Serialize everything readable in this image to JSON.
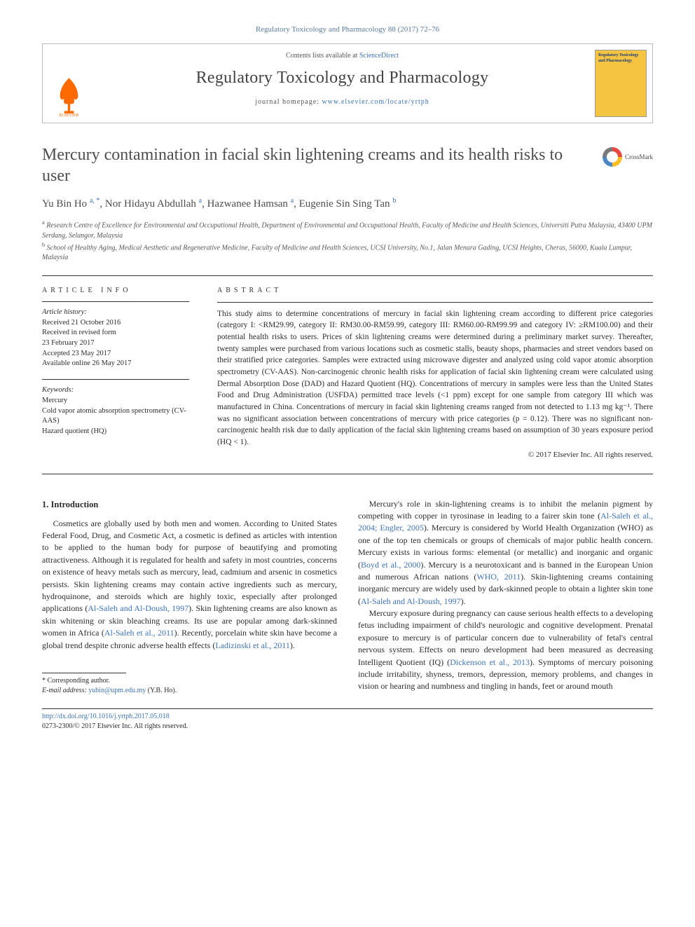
{
  "citation": "Regulatory Toxicology and Pharmacology 88 (2017) 72–76",
  "header": {
    "contents_prefix": "Contents lists available at ",
    "contents_link": "ScienceDirect",
    "journal_name": "Regulatory Toxicology and Pharmacology",
    "homepage_prefix": "journal homepage: ",
    "homepage_url": "www.elsevier.com/locate/yrtph",
    "cover_title": "Regulatory Toxicology and Pharmacology"
  },
  "article": {
    "title": "Mercury contamination in facial skin lightening creams and its health risks to user",
    "crossmark_label": "CrossMark",
    "authors_html": "Yu Bin Ho <sup>a, *</sup>, Nor Hidayu Abdullah <sup>a</sup>, Hazwanee Hamsan <sup>a</sup>, Eugenie Sin Sing Tan <sup>b</sup>",
    "affiliation_a": "Research Centre of Excellence for Environmental and Occupational Health, Department of Environmental and Occupational Health, Faculty of Medicine and Health Sciences, Universiti Putra Malaysia, 43400 UPM Serdang, Selangor, Malaysia",
    "affiliation_b": "School of Healthy Aging, Medical Aesthetic and Regenerative Medicine, Faculty of Medicine and Health Sciences, UCSI University, No.1, Jalan Menara Gading, UCSI Heights, Cheras, 56000, Kuala Lumpur, Malaysia"
  },
  "info": {
    "label": "ARTICLE INFO",
    "history_label": "Article history:",
    "history": [
      "Received 21 October 2016",
      "Received in revised form",
      "23 February 2017",
      "Accepted 23 May 2017",
      "Available online 26 May 2017"
    ],
    "keywords_label": "Keywords:",
    "keywords": [
      "Mercury",
      "Cold vapor atomic absorption spectrometry (CV-AAS)",
      "Hazard quotient (HQ)"
    ]
  },
  "abstract": {
    "label": "ABSTRACT",
    "text": "This study aims to determine concentrations of mercury in facial skin lightening cream according to different price categories (category I: <RM29.99, category II: RM30.00-RM59.99, category III: RM60.00-RM99.99 and category IV: ≥RM100.00) and their potential health risks to users. Prices of skin lightening creams were determined during a preliminary market survey. Thereafter, twenty samples were purchased from various locations such as cosmetic stalls, beauty shops, pharmacies and street vendors based on their stratified price categories. Samples were extracted using microwave digester and analyzed using cold vapor atomic absorption spectrometry (CV-AAS). Non-carcinogenic chronic health risks for application of facial skin lightening cream were calculated using Dermal Absorption Dose (DAD) and Hazard Quotient (HQ). Concentrations of mercury in samples were less than the United States Food and Drug Administration (USFDA) permitted trace levels (<1 ppm) except for one sample from category III which was manufactured in China. Concentrations of mercury in facial skin lightening creams ranged from not detected to 1.13 mg kg⁻¹. There was no significant association between concentrations of mercury with price categories (p = 0.12). There was no significant non-carcinogenic health risk due to daily application of the facial skin lightening creams based on assumption of 30 years exposure period (HQ < 1).",
    "copyright": "© 2017 Elsevier Inc. All rights reserved."
  },
  "body": {
    "section_heading": "1. Introduction",
    "col1_p1_a": "Cosmetics are globally used by both men and women. According to United States Federal Food, Drug, and Cosmetic Act, a cosmetic is defined as articles with intention to be applied to the human body for purpose of beautifying and promoting attractiveness. Although it is regulated for health and safety in most countries, concerns on existence of heavy metals such as mercury, lead, cadmium and arsenic in cosmetics persists. Skin lightening creams may contain active ingredients such as mercury, hydroquinone, and steroids which are highly toxic, especially after prolonged applications (",
    "col1_ref1": "Al-Saleh and Al-Doush, 1997",
    "col1_p1_b": "). Skin lightening creams are also known as skin whitening or skin bleaching creams. Its use are popular among dark-skinned women in Africa (",
    "col1_ref2": "Al-Saleh et al., 2011",
    "col1_p1_c": "). Recently, porcelain white skin have become a global trend despite chronic adverse health effects (",
    "col1_ref3": "Ladizinski et al., 2011",
    "col1_p1_d": ").",
    "col2_p1_a": "Mercury's role in skin-lightening creams is to inhibit the melanin pigment by competing with copper in tyrosinase in leading to a fairer skin tone (",
    "col2_ref1": "Al-Saleh et al., 2004; Engler, 2005",
    "col2_p1_b": "). Mercury is considered by World Health Organization (WHO) as one of the top ten chemicals or groups of chemicals of major public health concern. Mercury exists in various forms: elemental (or metallic) and inorganic and organic (",
    "col2_ref2": "Boyd et al., 2000",
    "col2_p1_c": "). Mercury is a neurotoxicant and is banned in the European Union and numerous African nations (",
    "col2_ref3": "WHO, 2011",
    "col2_p1_d": "). Skin-lightening creams containing inorganic mercury are widely used by dark-skinned people to obtain a lighter skin tone (",
    "col2_ref4": "Al-Saleh and Al-Doush, 1997",
    "col2_p1_e": ").",
    "col2_p2_a": "Mercury exposure during pregnancy can cause serious health effects to a developing fetus including impairment of child's neurologic and cognitive development. Prenatal exposure to mercury is of particular concern due to vulnerability of fetal's central nervous system. Effects on neuro development had been measured as decreasing Intelligent Quotient (IQ) (",
    "col2_ref5": "Dickenson et al., 2013",
    "col2_p2_b": "). Symptoms of mercury poisoning include irritability, shyness, tremors, depression, memory problems, and changes in vision or hearing and numbness and tingling in hands, feet or around mouth"
  },
  "footnote": {
    "corr": "* Corresponding author.",
    "email_label": "E-mail address:",
    "email": "yubin@upm.edu.my",
    "email_suffix": "(Y.B. Ho)."
  },
  "footer": {
    "doi": "http://dx.doi.org/10.1016/j.yrtph.2017.05.018",
    "copyright": "0273-2300/© 2017 Elsevier Inc. All rights reserved."
  }
}
